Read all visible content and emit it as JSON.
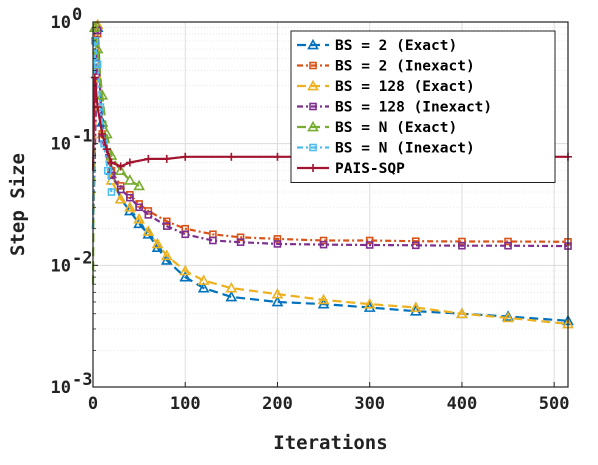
{
  "chart_data": {
    "type": "line",
    "xlabel": "Iterations",
    "ylabel": "Step Size",
    "xlim": [
      0,
      515
    ],
    "ylim": [
      0.001,
      1
    ],
    "yscale": "log",
    "x_ticks": [
      0,
      100,
      200,
      300,
      400,
      500
    ],
    "y_ticks": [
      {
        "value": 0.001,
        "base": "10",
        "exp": "-3"
      },
      {
        "value": 0.01,
        "base": "10",
        "exp": "-2"
      },
      {
        "value": 0.1,
        "base": "10",
        "exp": "-1"
      },
      {
        "value": 1,
        "base": "10",
        "exp": "0"
      }
    ],
    "grid": true,
    "legend_position": "top-right",
    "series": [
      {
        "name": "BS = 2 (Exact)",
        "color": "#0072BD",
        "marker": "triangle",
        "dash": "9,5",
        "x": [
          0,
          5,
          10,
          20,
          30,
          40,
          50,
          60,
          70,
          80,
          100,
          120,
          150,
          200,
          250,
          300,
          350,
          400,
          450,
          515
        ],
        "y": [
          0.02,
          0.9,
          0.15,
          0.06,
          0.035,
          0.028,
          0.022,
          0.018,
          0.014,
          0.011,
          0.008,
          0.0065,
          0.0055,
          0.005,
          0.0048,
          0.0045,
          0.0042,
          0.004,
          0.0038,
          0.0035
        ]
      },
      {
        "name": "BS = 2 (Inexact)",
        "color": "#D95319",
        "marker": "square",
        "dash": "6,3,2,3",
        "x": [
          0,
          5,
          10,
          20,
          30,
          40,
          50,
          60,
          80,
          100,
          130,
          160,
          200,
          250,
          300,
          350,
          400,
          450,
          515
        ],
        "y": [
          0.02,
          0.8,
          0.12,
          0.06,
          0.045,
          0.038,
          0.032,
          0.028,
          0.023,
          0.02,
          0.018,
          0.017,
          0.0165,
          0.016,
          0.016,
          0.0158,
          0.0157,
          0.0157,
          0.0156
        ]
      },
      {
        "name": "BS = 128 (Exact)",
        "color": "#EDB120",
        "marker": "triangle",
        "dash": "9,5",
        "x": [
          0,
          5,
          10,
          20,
          30,
          40,
          50,
          60,
          70,
          80,
          100,
          120,
          150,
          200,
          250,
          300,
          350,
          400,
          450,
          515
        ],
        "y": [
          0.02,
          0.95,
          0.12,
          0.05,
          0.035,
          0.03,
          0.024,
          0.019,
          0.015,
          0.012,
          0.009,
          0.0075,
          0.0065,
          0.0058,
          0.0052,
          0.0048,
          0.0045,
          0.004,
          0.0037,
          0.0033
        ]
      },
      {
        "name": "BS = 128 (Inexact)",
        "color": "#7E2F8E",
        "marker": "square",
        "dash": "6,3,2,3",
        "x": [
          0,
          5,
          10,
          20,
          30,
          40,
          50,
          60,
          80,
          100,
          130,
          160,
          200,
          250,
          300,
          350,
          400,
          450,
          515
        ],
        "y": [
          0.02,
          0.85,
          0.11,
          0.055,
          0.042,
          0.036,
          0.03,
          0.026,
          0.021,
          0.018,
          0.016,
          0.0155,
          0.015,
          0.0148,
          0.0147,
          0.0146,
          0.0145,
          0.0145,
          0.0144
        ]
      },
      {
        "name": "BS = N (Exact)",
        "color": "#77AC30",
        "marker": "triangle",
        "dash": "9,5",
        "x": [
          0,
          2,
          5,
          10,
          15,
          20,
          30,
          40,
          50
        ],
        "y": [
          0.007,
          0.9,
          0.6,
          0.25,
          0.12,
          0.08,
          0.06,
          0.05,
          0.045
        ]
      },
      {
        "name": "BS = N (Inexact)",
        "color": "#4DBEEE",
        "marker": "square",
        "dash": "6,3,2,3",
        "x": [
          0,
          2,
          5,
          8,
          12,
          16,
          20
        ],
        "y": [
          0.02,
          0.7,
          0.45,
          0.2,
          0.1,
          0.06,
          0.04
        ]
      },
      {
        "name": "PAIS-SQP",
        "color": "#A2142F",
        "marker": "plus",
        "dash": "",
        "x": [
          0,
          2,
          5,
          10,
          15,
          20,
          30,
          40,
          60,
          80,
          100,
          150,
          200,
          250,
          300,
          350,
          400,
          450,
          515
        ],
        "y": [
          0.06,
          0.35,
          0.2,
          0.12,
          0.09,
          0.07,
          0.065,
          0.07,
          0.075,
          0.075,
          0.078,
          0.078,
          0.078,
          0.078,
          0.078,
          0.078,
          0.078,
          0.078,
          0.078
        ]
      }
    ]
  }
}
